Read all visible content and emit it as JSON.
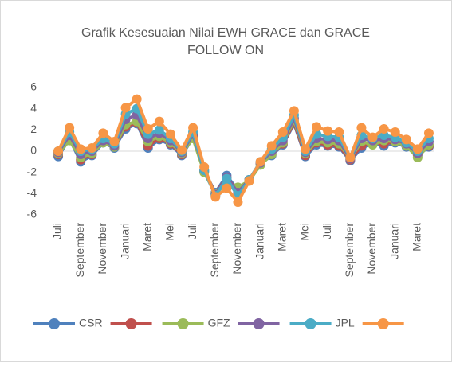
{
  "chart_data": {
    "type": "line",
    "title": "Grafik Kesesuaian Nilai EWH GRACE dan GRACE FOLLOW ON",
    "categories": [
      "Juli",
      null,
      "September",
      null,
      "November",
      null,
      "Januari",
      null,
      "Maret",
      null,
      "Mei",
      null,
      "Juli",
      null,
      "September",
      null,
      "November",
      null,
      "Januari",
      null,
      "Maret",
      null,
      "Mei",
      null,
      "Juli",
      null,
      "September",
      null,
      "November",
      null,
      "Januari",
      null,
      "Maret",
      null
    ],
    "ylim": [
      -6,
      6
    ],
    "yticks": [
      -6,
      -4,
      -2,
      0,
      2,
      4,
      6
    ],
    "grid": false,
    "legend": "bottom",
    "series": [
      {
        "name": "CSR",
        "color": "#4f81bd",
        "values": [
          -0.5,
          1.2,
          -1,
          -0.4,
          0.8,
          0.3,
          2.1,
          2.6,
          0.3,
          1.1,
          0.6,
          -0.4,
          1.3,
          -1.9,
          -3.9,
          -2.3,
          -3.7,
          -2.7,
          -1.2,
          -0.4,
          0.6,
          2.6,
          -0.5,
          0.6,
          0.5,
          0.4,
          -0.9,
          0.3,
          0.7,
          0.5,
          0.8,
          0.4,
          -0.4,
          0.4
        ]
      },
      {
        "color": "#c0504d",
        "values": [
          -0.3,
          1.3,
          -0.8,
          -0.3,
          0.9,
          0.4,
          2.3,
          2.7,
          0.5,
          1.2,
          0.7,
          -0.3,
          1.4,
          -1.9,
          -4.0,
          -2.5,
          -3.8,
          -2.7,
          -1.2,
          -0.3,
          0.7,
          2.7,
          -0.4,
          0.8,
          0.6,
          0.5,
          -0.8,
          0.5,
          0.8,
          0.7,
          0.9,
          0.5,
          -0.3,
          0.5
        ]
      },
      {
        "name": "GFZ",
        "color": "#9bbb59",
        "values": [
          -0.2,
          1.0,
          -0.6,
          -0.2,
          0.8,
          0.4,
          2.5,
          2.8,
          0.9,
          1.4,
          0.8,
          -0.2,
          1.2,
          -2.0,
          -4.0,
          -3.0,
          -3.4,
          -2.8,
          -1.3,
          -0.3,
          0.8,
          2.9,
          -0.2,
          0.9,
          0.8,
          0.7,
          -0.7,
          0.9,
          0.6,
          1.0,
          0.9,
          0.5,
          -0.6,
          0.6
        ]
      },
      {
        "color": "#8064a2",
        "values": [
          -0.1,
          1.5,
          -0.3,
          0,
          1.0,
          0.5,
          3.0,
          3.4,
          1.2,
          1.7,
          1.0,
          -0.1,
          1.6,
          -1.8,
          -4.1,
          -2.5,
          -3.9,
          -2.7,
          -1.1,
          0,
          1.0,
          3.1,
          -0.1,
          1.2,
          1.1,
          1.0,
          -0.7,
          1.2,
          1.0,
          1.2,
          1.1,
          0.7,
          -0.2,
          0.9
        ]
      },
      {
        "name": "JPL",
        "color": "#4bacc6",
        "values": [
          0,
          1.8,
          0,
          0.2,
          1.2,
          0.7,
          3.5,
          4,
          1.6,
          2.0,
          1.2,
          0,
          1.8,
          -1.8,
          -4.2,
          -2.6,
          -4.2,
          -2.7,
          -1,
          0.2,
          1.3,
          3.4,
          0,
          1.6,
          1.4,
          1.3,
          -0.6,
          1.5,
          1.2,
          1.5,
          1.3,
          0.8,
          0,
          1.2
        ]
      },
      {
        "color": "#f79646",
        "values": [
          0,
          2.2,
          0.2,
          0.3,
          1.7,
          0.9,
          4.1,
          4.9,
          2.1,
          2.8,
          1.6,
          0.1,
          2.2,
          -1.5,
          -4.3,
          -3.5,
          -4.8,
          -2.8,
          -1,
          0.5,
          1.8,
          3.8,
          0.2,
          2.3,
          1.9,
          1.8,
          -0.6,
          2.2,
          1.3,
          2.1,
          1.8,
          1.1,
          0.2,
          1.7
        ]
      }
    ]
  }
}
